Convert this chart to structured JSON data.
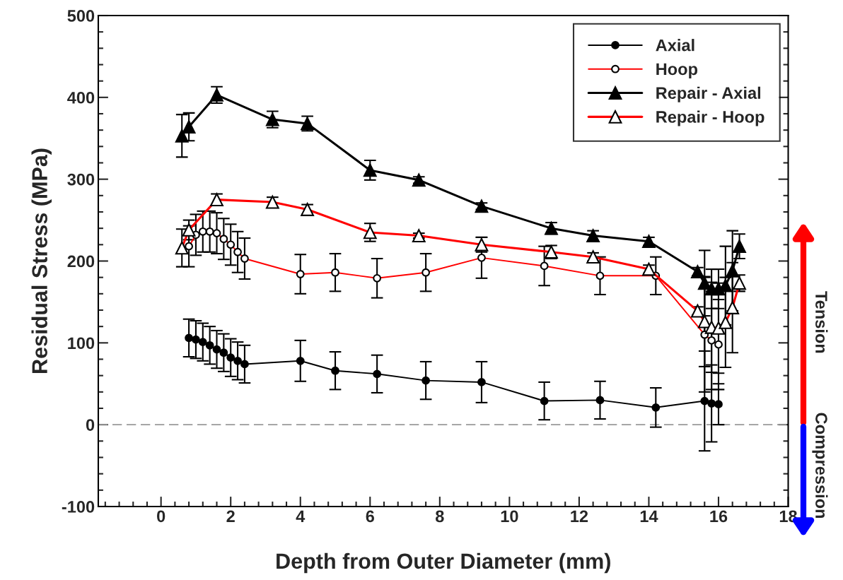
{
  "chart_data": {
    "type": "line",
    "xlabel": "Depth from Outer Diameter (mm)",
    "ylabel": "Residual Stress (MPa)",
    "xlim": [
      -1.8,
      18
    ],
    "xticks": [
      0,
      2,
      4,
      6,
      8,
      10,
      12,
      14,
      16,
      18
    ],
    "ylim": [
      -100,
      500
    ],
    "yticks": [
      -100,
      0,
      100,
      200,
      300,
      400,
      500
    ],
    "grid": false,
    "legend": "top right",
    "ref_lines": [
      {
        "axis": "y",
        "value": 0,
        "color": "#999999",
        "line_style": "dashed"
      }
    ],
    "annotations": [
      "Tension",
      "Compression"
    ],
    "series": [
      {
        "name": "Axial",
        "color": "#000000",
        "marker": "circle",
        "x": [
          0.8,
          1.0,
          1.2,
          1.4,
          1.6,
          1.8,
          2.0,
          2.2,
          2.4,
          4.0,
          5.0,
          6.2,
          7.6,
          9.2,
          11.0,
          12.6,
          14.2,
          15.6,
          15.8,
          16.0
        ],
        "values": [
          106,
          104,
          101,
          97,
          92,
          88,
          82,
          78,
          74,
          78,
          66,
          62,
          54,
          52,
          29,
          30,
          21,
          29,
          26,
          25
        ],
        "errors": [
          23,
          23,
          23,
          23,
          23,
          23,
          23,
          23,
          23,
          25,
          23,
          23,
          23,
          25,
          23,
          23,
          24,
          61,
          47,
          25
        ]
      },
      {
        "name": "Hoop",
        "color": "#ff0000",
        "marker": "circle",
        "x": [
          0.8,
          1.0,
          1.2,
          1.4,
          1.6,
          1.8,
          2.0,
          2.2,
          2.4,
          4.0,
          5.0,
          6.2,
          7.6,
          9.2,
          11.0,
          12.6,
          14.2,
          15.6,
          15.8,
          16.0
        ],
        "values": [
          218,
          232,
          236,
          236,
          234,
          227,
          220,
          211,
          203,
          184,
          186,
          179,
          186,
          204,
          194,
          182,
          182,
          110,
          103,
          98
        ],
        "errors": [
          25,
          25,
          25,
          25,
          25,
          25,
          25,
          25,
          25,
          24,
          23,
          24,
          23,
          25,
          24,
          23,
          23,
          70,
          60,
          55
        ]
      },
      {
        "name": "Repair - Axial",
        "color": "#000000",
        "marker": "triangle",
        "x": [
          0.6,
          0.8,
          1.6,
          3.2,
          4.2,
          6.0,
          7.4,
          9.2,
          11.2,
          12.4,
          14.0,
          15.4,
          15.6,
          15.8,
          16.0,
          16.2,
          16.4,
          16.6
        ],
        "values": [
          353,
          364,
          403,
          373,
          368,
          311,
          299,
          267,
          240,
          231,
          224,
          187,
          173,
          166,
          166,
          170,
          188,
          218
        ],
        "errors": [
          26,
          17,
          10,
          10,
          9,
          12,
          4,
          4,
          7,
          6,
          5,
          5,
          40,
          24,
          24,
          48,
          49,
          15
        ]
      },
      {
        "name": "Repair - Hoop",
        "color": "#ff0000",
        "marker": "triangle",
        "x": [
          0.6,
          0.8,
          1.6,
          3.2,
          4.2,
          6.0,
          7.4,
          9.2,
          11.2,
          12.4,
          14.0,
          15.4,
          15.6,
          15.8,
          16.0,
          16.2,
          16.4,
          16.6
        ],
        "values": [
          216,
          238,
          275,
          272,
          263,
          235,
          231,
          220,
          211,
          205,
          190,
          139,
          126,
          119,
          118,
          125,
          143,
          173
        ],
        "errors": [
          23,
          12,
          7,
          6,
          6,
          11,
          3,
          9,
          8,
          5,
          5,
          5,
          55,
          55,
          55,
          55,
          55,
          10
        ]
      }
    ]
  }
}
